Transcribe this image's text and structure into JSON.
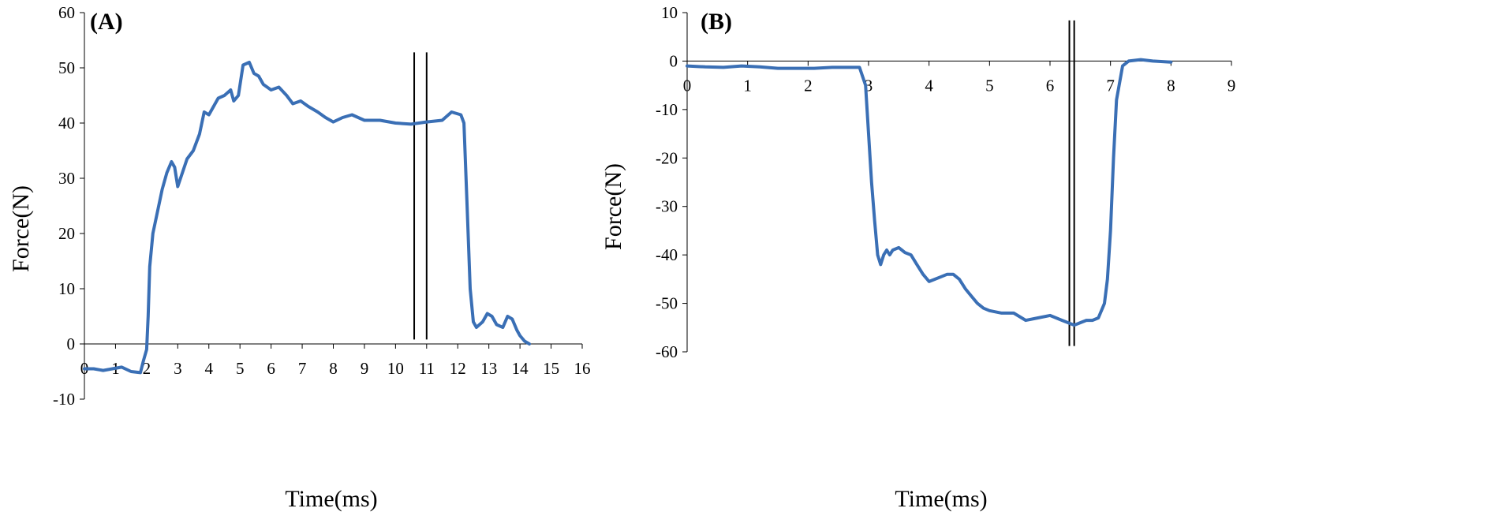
{
  "chart_data": [
    {
      "type": "line",
      "panel_label": "(A)",
      "xlabel": "Time(ms)",
      "ylabel": "Force(N)",
      "xlim": [
        0,
        16
      ],
      "ylim": [
        -10,
        60
      ],
      "x_ticks": [
        0,
        1,
        2,
        3,
        4,
        5,
        6,
        7,
        8,
        9,
        10,
        11,
        12,
        13,
        14,
        15,
        16
      ],
      "y_ticks": [
        -10,
        0,
        10,
        20,
        30,
        40,
        50,
        60
      ],
      "grid": false,
      "color": "#3a6fb5",
      "series": [
        {
          "x": [
            0,
            0.3,
            0.6,
            0.9,
            1.2,
            1.5,
            1.8,
            1.9,
            2.0,
            2.05,
            2.1,
            2.2,
            2.35,
            2.5,
            2.65,
            2.8,
            2.9,
            3.0,
            3.15,
            3.3,
            3.5,
            3.7,
            3.85,
            4.0,
            4.15,
            4.3,
            4.5,
            4.7,
            4.8,
            4.95,
            5.1,
            5.3,
            5.45,
            5.6,
            5.75,
            6.0,
            6.25,
            6.5,
            6.7,
            6.95,
            7.2,
            7.5,
            7.75,
            8.0,
            8.3,
            8.6,
            9.0,
            9.5,
            10.0,
            10.5,
            11.0,
            11.5,
            11.8,
            12.1,
            12.2,
            12.3,
            12.4,
            12.5,
            12.6,
            12.8,
            12.95,
            13.1,
            13.25,
            13.45,
            13.6,
            13.75,
            13.9,
            14.0,
            14.15,
            14.3
          ],
          "y": [
            -4.5,
            -4.5,
            -4.8,
            -4.5,
            -4.2,
            -5.0,
            -5.2,
            -3.0,
            -1.0,
            5.0,
            14.0,
            20.0,
            24.0,
            28.0,
            31.0,
            33.0,
            32.0,
            28.5,
            31.0,
            33.5,
            35.0,
            38.0,
            42.0,
            41.5,
            43.0,
            44.5,
            45.0,
            46.0,
            44.0,
            45.0,
            50.5,
            51.0,
            49.0,
            48.5,
            47.0,
            46.0,
            46.5,
            45.0,
            43.5,
            44.0,
            43.0,
            42.0,
            41.0,
            40.2,
            41.0,
            41.5,
            40.5,
            40.5,
            40.0,
            39.8,
            40.2,
            40.5,
            42.0,
            41.5,
            40.0,
            25.0,
            10.0,
            4.0,
            3.0,
            4.0,
            5.5,
            5.0,
            3.5,
            3.0,
            5.0,
            4.5,
            2.5,
            1.5,
            0.5,
            0.0
          ]
        }
      ],
      "vertical_lines": [
        10.6,
        11.0
      ],
      "vertical_lines_range": [
        0.8,
        52.8
      ]
    },
    {
      "type": "line",
      "panel_label": "(B)",
      "xlabel": "Time(ms)",
      "ylabel": "Force(N)",
      "xlim": [
        0,
        9
      ],
      "ylim": [
        -60,
        10
      ],
      "x_ticks": [
        0,
        1,
        2,
        3,
        4,
        5,
        6,
        7,
        8,
        9
      ],
      "y_ticks": [
        -60,
        -50,
        -40,
        -30,
        -20,
        -10,
        0,
        10
      ],
      "grid": false,
      "color": "#3a6fb5",
      "series": [
        {
          "x": [
            0,
            0.3,
            0.6,
            0.9,
            1.2,
            1.5,
            1.8,
            2.1,
            2.4,
            2.7,
            2.85,
            2.95,
            3.0,
            3.05,
            3.1,
            3.15,
            3.2,
            3.25,
            3.3,
            3.35,
            3.4,
            3.5,
            3.6,
            3.7,
            3.8,
            3.9,
            4.0,
            4.1,
            4.2,
            4.3,
            4.4,
            4.5,
            4.6,
            4.7,
            4.8,
            4.9,
            5.0,
            5.2,
            5.4,
            5.6,
            5.8,
            6.0,
            6.1,
            6.2,
            6.3,
            6.4,
            6.5,
            6.6,
            6.7,
            6.8,
            6.9,
            6.95,
            7.0,
            7.05,
            7.1,
            7.2,
            7.3,
            7.5,
            7.7,
            8.0
          ],
          "y": [
            -1.0,
            -1.2,
            -1.3,
            -1.0,
            -1.2,
            -1.5,
            -1.5,
            -1.5,
            -1.3,
            -1.3,
            -1.3,
            -5.0,
            -15.0,
            -25.0,
            -33.0,
            -40.0,
            -42.0,
            -40.0,
            -39.0,
            -40.0,
            -39.0,
            -38.5,
            -39.5,
            -40.0,
            -42.0,
            -44.0,
            -45.5,
            -45.0,
            -44.5,
            -44.0,
            -44.0,
            -45.0,
            -47.0,
            -48.5,
            -50.0,
            -51.0,
            -51.5,
            -52.0,
            -52.0,
            -53.5,
            -53.0,
            -52.5,
            -53.0,
            -53.5,
            -54.0,
            -54.5,
            -54.0,
            -53.5,
            -53.5,
            -53.0,
            -50.0,
            -45.0,
            -35.0,
            -20.0,
            -8.0,
            -1.0,
            0.0,
            0.3,
            0.0,
            -0.2
          ]
        }
      ],
      "vertical_lines": [
        6.32,
        6.4
      ],
      "vertical_lines_range": [
        -58.8,
        8.4
      ]
    }
  ]
}
